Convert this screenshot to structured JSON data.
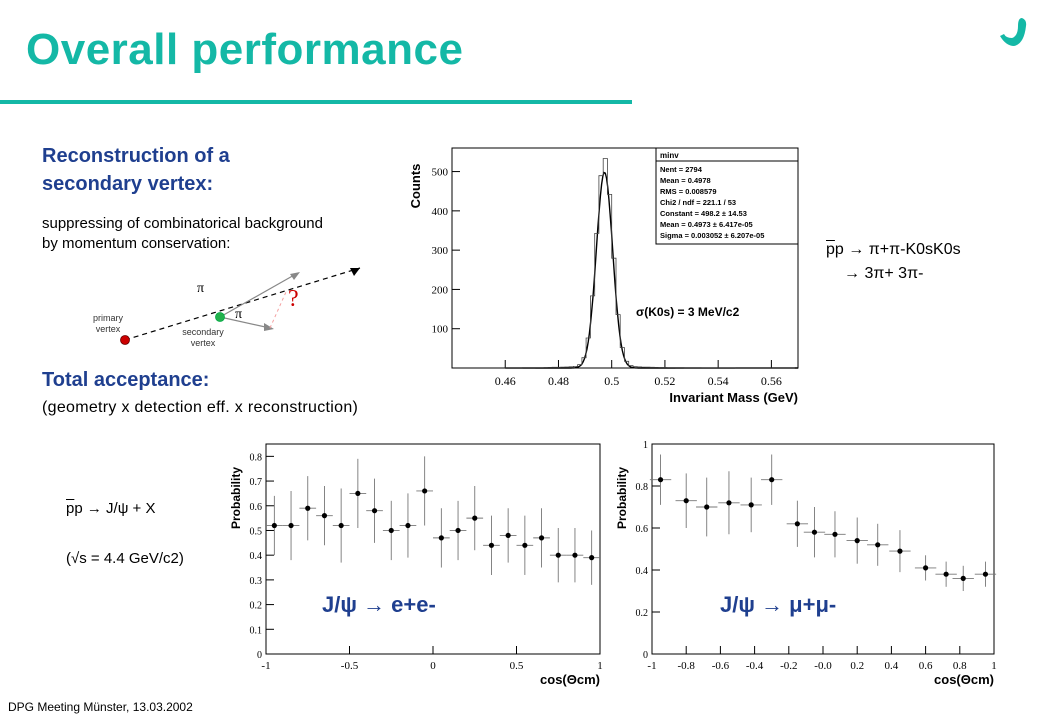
{
  "title": "Overall performance",
  "left": {
    "heading1_line1": "Reconstruction of a",
    "heading1_line2": "secondary vertex:",
    "desc_line1": "suppressing of combinatorical background",
    "desc_line2": "by momentum conservation:",
    "primary_line1": "primary",
    "primary_line2": "vertex",
    "secondary_line1": "secondary",
    "secondary_line2": "vertex",
    "pi_label": "π",
    "question": "?",
    "heading2": "Total acceptance:",
    "acceptance_desc": "(geometry x detection eff. x reconstruction)"
  },
  "reaction1": {
    "line1_prefix": "p",
    "line1_main": "p  →  π+π-K0sK0s",
    "line2": "→  3π+ 3π-"
  },
  "reaction2": {
    "line1": "p → J/ψ + X",
    "line1_p": "p",
    "line2": "(√s = 4.4 GeV/c2)"
  },
  "footer": "DPG Meeting Münster,  13.03.2002",
  "colors": {
    "accent": "#14b8a6",
    "heading": "#1f3f8f",
    "vertex_primary": "#cc0000",
    "vertex_secondary": "#22b14c"
  },
  "chart_data": [
    {
      "type": "line",
      "title": "",
      "xlabel": "Invariant Mass (GeV)",
      "ylabel": "Counts",
      "xlim": [
        0.44,
        0.57
      ],
      "ylim": [
        0,
        560
      ],
      "xticks": [
        "0.46",
        "0.48",
        "0.5",
        "0.52",
        "0.54",
        "0.56"
      ],
      "yticks": [
        "100",
        "200",
        "300",
        "400",
        "500"
      ],
      "annotation": "σ(K0s) = 3 MeV/c2",
      "stats_box": {
        "name": "minv",
        "rows": [
          "Nent = 2794",
          "Mean  = 0.4978",
          "RMS   = 0.008579",
          "Chi2 / ndf = 221.1 / 53",
          "Constant = 498.2 ± 14.53",
          "Mean     = 0.4973 ± 6.417e-05",
          "Sigma    = 0.003052 ± 6.207e-05"
        ]
      },
      "fit": {
        "constant": 498.2,
        "mean": 0.4973,
        "sigma": 0.003052
      }
    },
    {
      "type": "scatter",
      "title": "J/ψ → e+e-",
      "xlabel": "cos(Θcm)",
      "ylabel": "Probability",
      "xlim": [
        -1,
        1
      ],
      "ylim": [
        0,
        0.85
      ],
      "xticks": [
        "-1",
        "-0.5",
        "0",
        "0.5",
        "1"
      ],
      "yticks": [
        "0",
        "0.1",
        "0.2",
        "0.3",
        "0.4",
        "0.5",
        "0.6",
        "0.7",
        "0.8"
      ],
      "x": [
        -0.95,
        -0.85,
        -0.75,
        -0.65,
        -0.55,
        -0.45,
        -0.35,
        -0.25,
        -0.15,
        -0.05,
        0.05,
        0.15,
        0.25,
        0.35,
        0.45,
        0.55,
        0.65,
        0.75,
        0.85,
        0.95
      ],
      "y": [
        0.52,
        0.52,
        0.59,
        0.56,
        0.52,
        0.65,
        0.58,
        0.5,
        0.52,
        0.66,
        0.47,
        0.5,
        0.55,
        0.44,
        0.48,
        0.44,
        0.47,
        0.4,
        0.4,
        0.39
      ],
      "err": [
        0.12,
        0.14,
        0.13,
        0.12,
        0.15,
        0.14,
        0.13,
        0.12,
        0.13,
        0.14,
        0.12,
        0.12,
        0.13,
        0.12,
        0.11,
        0.12,
        0.12,
        0.11,
        0.11,
        0.11
      ]
    },
    {
      "type": "scatter",
      "title": "J/ψ → μ+μ-",
      "xlabel": "cos(Θcm)",
      "ylabel": "Probability",
      "xlim": [
        -1,
        1
      ],
      "ylim": [
        0,
        1.0
      ],
      "xticks": [
        "-1",
        "-0.8",
        "-0.6",
        "-0.4",
        "-0.2",
        "-0.0",
        "0.2",
        "0.4",
        "0.6",
        "0.8",
        "1"
      ],
      "yticks": [
        "0",
        "0.2",
        "0.4",
        "0.6",
        "0.8",
        "1"
      ],
      "x": [
        -0.95,
        -0.8,
        -0.68,
        -0.55,
        -0.42,
        -0.3,
        -0.15,
        -0.05,
        0.07,
        0.2,
        0.32,
        0.45,
        0.6,
        0.72,
        0.82,
        0.95
      ],
      "y": [
        0.83,
        0.73,
        0.7,
        0.72,
        0.71,
        0.83,
        0.62,
        0.58,
        0.57,
        0.54,
        0.52,
        0.49,
        0.41,
        0.38,
        0.36,
        0.38
      ],
      "err": [
        0.12,
        0.13,
        0.14,
        0.15,
        0.13,
        0.12,
        0.11,
        0.12,
        0.11,
        0.11,
        0.1,
        0.1,
        0.06,
        0.06,
        0.06,
        0.06
      ]
    }
  ]
}
